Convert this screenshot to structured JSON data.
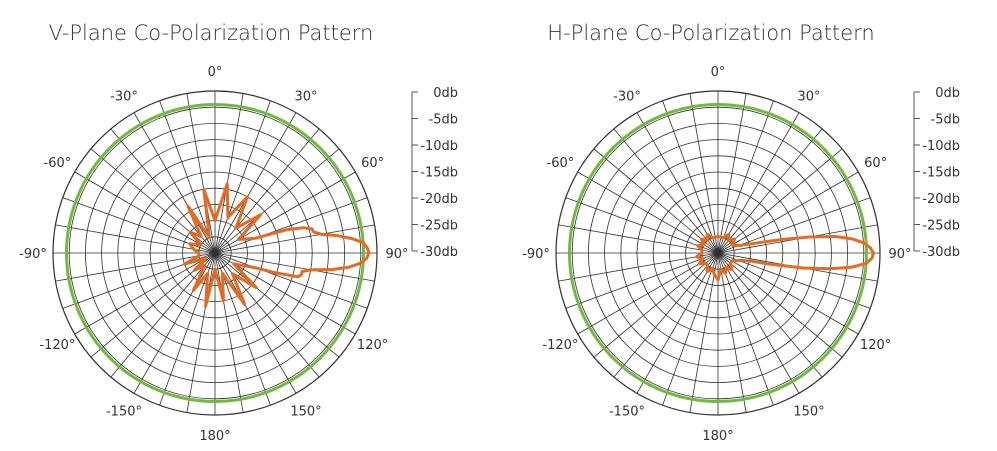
{
  "colors": {
    "grid": "#2f2f2f",
    "reference_ring": "#72b843",
    "pattern": "#e36b24",
    "text": "#333333"
  },
  "chart_data": [
    {
      "type": "polar-line",
      "title": "V-Plane Co-Polarization Pattern",
      "angle_labels": [
        "0°",
        "30°",
        "60°",
        "90°",
        "120°",
        "150°",
        "180°",
        "-150°",
        "-120°",
        "-90°",
        "-60°",
        "-30°"
      ],
      "angle_label_values": [
        0,
        30,
        60,
        90,
        120,
        150,
        180,
        -150,
        -120,
        -90,
        -60,
        -30
      ],
      "radial_labels": [
        "0db",
        "-5db",
        "-10db",
        "-15db",
        "-20db",
        "-25db",
        "-30db"
      ],
      "radial_range_db": [
        -30,
        0
      ],
      "reference_ring_db": -2.5,
      "series": [
        {
          "angles_deg": [
            0,
            10,
            20,
            30,
            40,
            50,
            60,
            70,
            72,
            74,
            76,
            78,
            80,
            82,
            84,
            86,
            88,
            90,
            92,
            94,
            96,
            98,
            100,
            102,
            104,
            106,
            108,
            110,
            120,
            130,
            140,
            150,
            160,
            170,
            180,
            190,
            200,
            210,
            220,
            230,
            240,
            250,
            260,
            270,
            280,
            290,
            300,
            310,
            320,
            330,
            340,
            350
          ],
          "values_db": [
            -24,
            -17,
            -23,
            -18,
            -24,
            -19,
            -25,
            -22,
            -16,
            -13,
            -11.5,
            -11.3,
            -10,
            -7,
            -4.5,
            -2.5,
            -1.8,
            -1.5,
            -1.9,
            -3,
            -5,
            -8,
            -12,
            -13.5,
            -13.5,
            -14,
            -18,
            -22,
            -26,
            -20,
            -25,
            -19,
            -26,
            -21,
            -27,
            -20,
            -26,
            -22,
            -27,
            -25,
            -28,
            -24,
            -27,
            -27,
            -26,
            -25,
            -27,
            -24,
            -26,
            -20,
            -27,
            -18
          ]
        }
      ]
    },
    {
      "type": "polar-line",
      "title": "H-Plane Co-Polarization Pattern",
      "angle_labels": [
        "0°",
        "30°",
        "60°",
        "90°",
        "120°",
        "150°",
        "180°",
        "-150°",
        "-120°",
        "-90°",
        "-60°",
        "-30°"
      ],
      "angle_label_values": [
        0,
        30,
        60,
        90,
        120,
        150,
        180,
        -150,
        -120,
        -90,
        -60,
        -30
      ],
      "radial_labels": [
        "0db",
        "-5db",
        "-10db",
        "-15db",
        "-20db",
        "-25db",
        "-30db"
      ],
      "radial_range_db": [
        -30,
        0
      ],
      "reference_ring_db": -2.5,
      "series": [
        {
          "angles_deg": [
            0,
            10,
            20,
            30,
            40,
            50,
            60,
            70,
            74,
            78,
            80,
            82,
            84,
            86,
            88,
            90,
            92,
            94,
            96,
            98,
            100,
            102,
            104,
            110,
            120,
            130,
            140,
            150,
            160,
            170,
            180,
            190,
            200,
            210,
            220,
            230,
            240,
            250,
            260,
            270,
            280,
            290,
            300,
            310,
            320,
            330,
            340,
            350
          ],
          "values_db": [
            -27,
            -27,
            -27,
            -26,
            -27,
            -26,
            -27,
            -26,
            -24,
            -18,
            -13,
            -8,
            -5,
            -3,
            -1.8,
            -1.2,
            -1.5,
            -2.5,
            -5,
            -9,
            -14,
            -20,
            -24,
            -26,
            -27,
            -27,
            -26,
            -27,
            -26,
            -27,
            -25,
            -26,
            -27,
            -26,
            -27,
            -27,
            -26,
            -27,
            -26,
            -27,
            -27,
            -26,
            -27,
            -26,
            -27,
            -26,
            -27,
            -27
          ]
        }
      ]
    }
  ]
}
